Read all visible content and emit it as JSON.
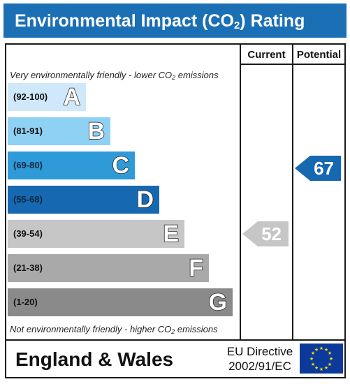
{
  "header": {
    "title_prefix": "Environmental Impact (CO",
    "title_sub": "2",
    "title_suffix": ") Rating"
  },
  "columns": {
    "current": "Current",
    "potential": "Potential"
  },
  "captions": {
    "top_prefix": "Very environmentally friendly - lower CO",
    "top_sub": "2",
    "top_suffix": " emissions",
    "bottom_prefix": "Not environmentally friendly - higher CO",
    "bottom_sub": "2",
    "bottom_suffix": " emissions"
  },
  "bands": [
    {
      "range": "(92-100)",
      "letter": "A",
      "color": "#cfe8fa"
    },
    {
      "range": "(81-91)",
      "letter": "B",
      "color": "#8fd0f5"
    },
    {
      "range": "(69-80)",
      "letter": "C",
      "color": "#2f9ad8"
    },
    {
      "range": "(55-68)",
      "letter": "D",
      "color": "#1668b0"
    },
    {
      "range": "(39-54)",
      "letter": "E",
      "color": "#c6c6c6"
    },
    {
      "range": "(21-38)",
      "letter": "F",
      "color": "#a9a9a9"
    },
    {
      "range": "(1-20)",
      "letter": "G",
      "color": "#8a8a8a"
    }
  ],
  "ratings": {
    "current": {
      "value": "52",
      "band": "E",
      "color": "#c6c6c6"
    },
    "potential": {
      "value": "67",
      "band": "D",
      "color": "#1668b0"
    }
  },
  "footer": {
    "region": "England & Wales",
    "directive_line1": "EU Directive",
    "directive_line2": "2002/91/EC"
  }
}
